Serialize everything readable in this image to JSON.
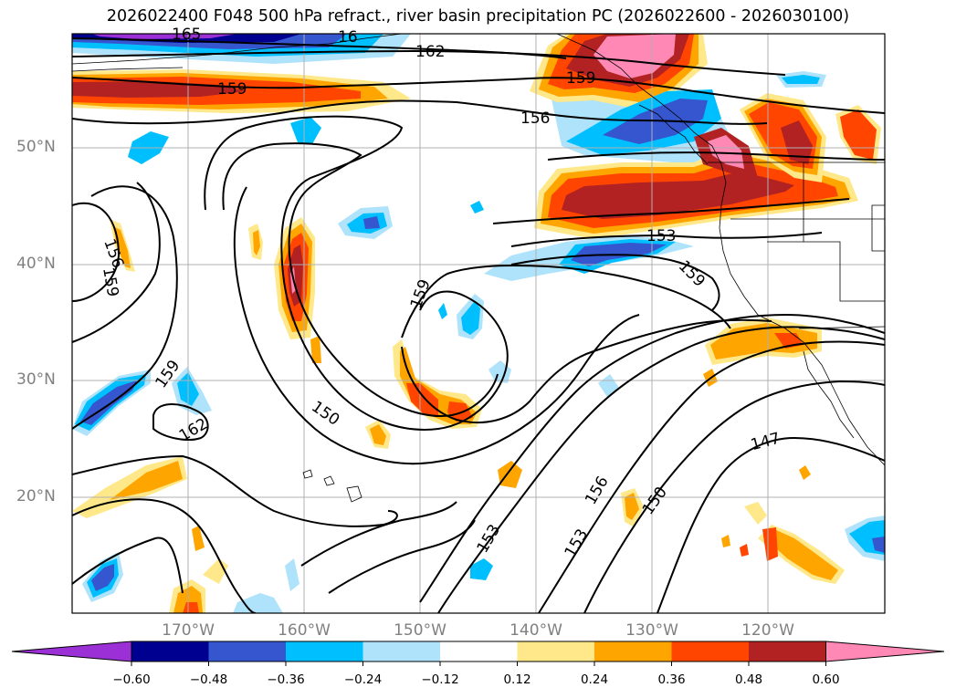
{
  "title": "2026022400 F048 500 hPa refract., river basin precipitation PC (2026022600 - 2026030100)",
  "lat_labels": [
    {
      "value": 50,
      "text": "50°N"
    },
    {
      "value": 40,
      "text": "40°N"
    },
    {
      "value": 30,
      "text": "30°N"
    },
    {
      "value": 20,
      "text": "20°N"
    }
  ],
  "lon_labels": [
    {
      "value": -170,
      "text": "170°W"
    },
    {
      "value": -160,
      "text": "160°W"
    },
    {
      "value": -150,
      "text": "150°W"
    },
    {
      "value": -140,
      "text": "140°W"
    },
    {
      "value": -130,
      "text": "130°W"
    },
    {
      "value": -120,
      "text": "120°W"
    }
  ],
  "contour_labels": [
    {
      "text": "165"
    },
    {
      "text": "162"
    },
    {
      "text": "159"
    },
    {
      "text": "156"
    },
    {
      "text": "159"
    },
    {
      "text": "156"
    },
    {
      "text": "159"
    },
    {
      "text": "153"
    },
    {
      "text": "159"
    },
    {
      "text": "159"
    },
    {
      "text": "162"
    },
    {
      "text": "150"
    },
    {
      "text": "147"
    },
    {
      "text": "156"
    },
    {
      "text": "150"
    },
    {
      "text": "153"
    },
    {
      "text": "153"
    },
    {
      "text": "16"
    }
  ],
  "colorbar": {
    "ticks": [
      "−0.60",
      "−0.48",
      "−0.36",
      "−0.24",
      "−0.12",
      "0.12",
      "0.24",
      "0.36",
      "0.48",
      "0.60"
    ],
    "colors": [
      "#9b30d6",
      "#000090",
      "#3556cf",
      "#00bfff",
      "#aee3fb",
      "#ffffff",
      "#ffe88a",
      "#ffa500",
      "#ff4500",
      "#b22222",
      "#ff88b4"
    ]
  },
  "colors": {
    "shade_purple": "#9b30d6",
    "shade_navy": "#000090",
    "shade_blue": "#3556cf",
    "shade_cyan": "#00bfff",
    "shade_lightblue": "#aee3fb",
    "shade_yellow": "#ffe88a",
    "shade_orange": "#ffa500",
    "shade_redorange": "#ff4500",
    "shade_darkred": "#b22222",
    "shade_pink": "#ff88b4"
  }
}
